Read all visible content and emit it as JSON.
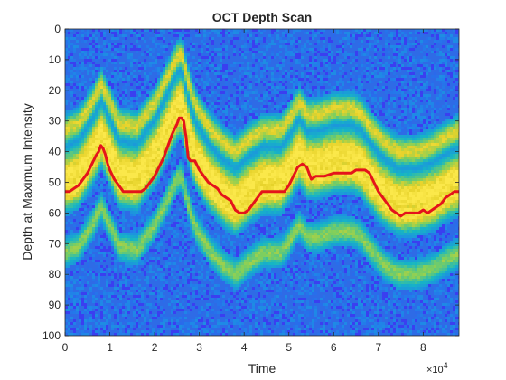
{
  "chart_data": {
    "type": "heatmap",
    "title": "OCT Depth Scan",
    "xlabel": "Time",
    "ylabel": "Depth at Maximum Intensity",
    "x_exponent_label": "×10",
    "x_exponent_power": "4",
    "xlim": [
      0,
      88000
    ],
    "ylim": [
      0,
      100
    ],
    "y_reversed": true,
    "x_ticks": [
      0,
      10000,
      20000,
      30000,
      40000,
      50000,
      60000,
      70000,
      80000
    ],
    "x_tick_labels": [
      "0",
      "1",
      "2",
      "3",
      "4",
      "5",
      "6",
      "7",
      "8"
    ],
    "y_ticks": [
      0,
      10,
      20,
      30,
      40,
      50,
      60,
      70,
      80,
      90,
      100
    ],
    "y_tick_labels": [
      "0",
      "10",
      "20",
      "30",
      "40",
      "50",
      "60",
      "70",
      "80",
      "90",
      "100"
    ],
    "colormap": [
      "#3a3ff0",
      "#1f86e8",
      "#16b6c4",
      "#7fcf5d",
      "#e6d22a",
      "#fbe84a"
    ],
    "background_color": "#2e6be6",
    "bands": [
      {
        "name_hint": "upper-band",
        "offset": -20,
        "width": 3.0,
        "intensity": 0.75
      },
      {
        "name_hint": "middle-band",
        "offset": -5,
        "width": 5.0,
        "intensity": 1.0
      },
      {
        "name_hint": "main-band",
        "offset": 0,
        "width": 4.0,
        "intensity": 0.95
      },
      {
        "name_hint": "lower-band",
        "offset": 20,
        "width": 3.0,
        "intensity": 0.55
      }
    ],
    "band_anchor_depth": [
      [
        0,
        53
      ],
      [
        3000,
        51
      ],
      [
        6000,
        44
      ],
      [
        8000,
        38
      ],
      [
        10000,
        44
      ],
      [
        12000,
        51
      ],
      [
        16000,
        52
      ],
      [
        20000,
        44
      ],
      [
        23000,
        35
      ],
      [
        25000,
        29
      ],
      [
        26000,
        28
      ],
      [
        27000,
        35
      ],
      [
        29000,
        45
      ],
      [
        32000,
        52
      ],
      [
        35000,
        57
      ],
      [
        38000,
        60
      ],
      [
        41000,
        56
      ],
      [
        44000,
        53
      ],
      [
        48000,
        53
      ],
      [
        50000,
        49
      ],
      [
        52000,
        44
      ],
      [
        54000,
        48
      ],
      [
        56000,
        48
      ],
      [
        60000,
        46
      ],
      [
        64000,
        46
      ],
      [
        66000,
        48
      ],
      [
        68000,
        52
      ],
      [
        71000,
        57
      ],
      [
        74000,
        60
      ],
      [
        78000,
        60
      ],
      [
        82000,
        58
      ],
      [
        85000,
        55
      ],
      [
        88000,
        53
      ]
    ],
    "series": [
      {
        "line_color": "#e4141b",
        "x": [
          0,
          1000,
          2000,
          3000,
          4000,
          5000,
          6000,
          7000,
          7500,
          8000,
          8500,
          9000,
          9500,
          10000,
          11000,
          12000,
          13000,
          15000,
          17000,
          18000,
          19000,
          20000,
          21000,
          22000,
          23000,
          24000,
          25000,
          25500,
          26000,
          26500,
          27000,
          27500,
          28000,
          29000,
          30000,
          31000,
          32000,
          33000,
          34000,
          35000,
          36000,
          37000,
          38000,
          39000,
          40000,
          41000,
          42000,
          43000,
          44000,
          46000,
          48000,
          49000,
          50000,
          51000,
          52000,
          53000,
          54000,
          55000,
          56000,
          58000,
          60000,
          62000,
          64000,
          65000,
          66000,
          67000,
          68000,
          69000,
          70000,
          71000,
          72000,
          73000,
          74000,
          75000,
          76000,
          77000,
          78000,
          79000,
          80000,
          81000,
          82000,
          83000,
          84000,
          85000,
          86000,
          87000,
          88000
        ],
        "y": [
          53,
          53,
          52,
          51,
          49,
          47,
          44,
          41,
          40,
          38,
          39,
          41,
          44,
          46,
          49,
          51,
          53,
          53,
          53,
          52,
          50,
          48,
          45,
          42,
          38,
          34,
          31,
          29,
          29,
          30,
          35,
          42,
          43,
          43,
          46,
          48,
          50,
          51,
          52,
          54,
          55,
          56,
          59,
          60,
          60,
          59,
          57,
          55,
          53,
          53,
          53,
          53,
          51,
          48,
          45,
          44,
          45,
          49,
          48,
          48,
          47,
          47,
          47,
          46,
          46,
          46,
          47,
          50,
          53,
          55,
          57,
          59,
          60,
          61,
          60,
          60,
          60,
          60,
          59,
          60,
          59,
          58,
          57,
          55,
          54,
          53,
          53
        ]
      }
    ]
  }
}
